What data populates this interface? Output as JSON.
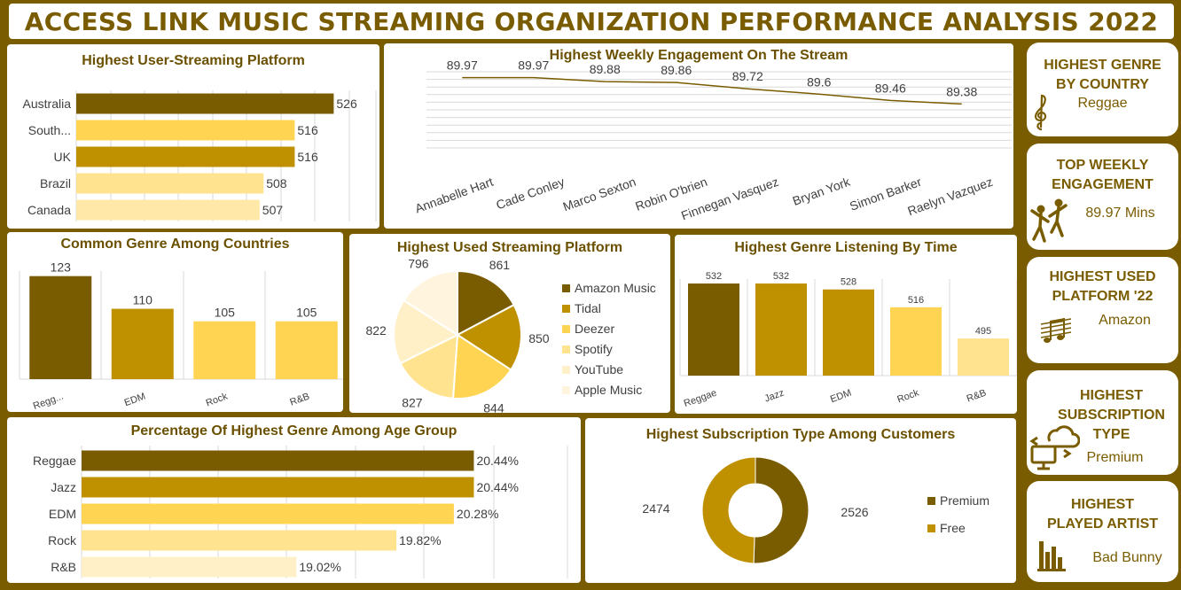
{
  "title": "ACCESS LINK MUSIC STREAMING ORGANIZATION PERFORMANCE ANALYSIS 2022",
  "colors": {
    "dark": "#7a5c00",
    "mid": "#bf9000",
    "yellow": "#ffd452",
    "light": "#ffe38f",
    "pale": "#fff0c8",
    "paler": "#fff5de"
  },
  "cards": [
    {
      "title_lines": [
        "HIGHEST GENRE",
        "BY COUNTRY"
      ],
      "value": "Reggae",
      "icon": "treble-clef-icon"
    },
    {
      "title_lines": [
        "TOP WEEKLY",
        "ENGAGEMENT"
      ],
      "value": "89.97 Mins",
      "icon": "dancers-icon"
    },
    {
      "title_lines": [
        "HIGHEST USED",
        "PLATFORM '22"
      ],
      "value": "Amazon",
      "icon": "music-notes-icon"
    },
    {
      "title_lines": [
        "HIGHEST",
        "SUBSCRIPTION",
        "TYPE"
      ],
      "value": "Premium",
      "icon": "cloud-computer-icon"
    },
    {
      "title_lines": [
        "HIGHEST",
        "PLAYED ARTIST"
      ],
      "value": "Bad Bunny",
      "icon": "bar-chart-icon"
    }
  ],
  "chart_data": [
    {
      "id": "user_platform",
      "type": "bar",
      "orientation": "horizontal",
      "title": "Highest User-Streaming Platform",
      "categories": [
        "Australia",
        "South...",
        "UK",
        "Brazil",
        "Canada"
      ],
      "values": [
        526,
        516,
        516,
        508,
        507
      ],
      "labels": [
        "526",
        "516",
        "516",
        "508",
        "507"
      ],
      "xlim": [
        460,
        530
      ],
      "colors": [
        "#7a5c00",
        "#ffd452",
        "#bf9000",
        "#ffe38f",
        "#ffe8a8"
      ]
    },
    {
      "id": "weekly_engagement",
      "type": "line",
      "title": "Highest Weekly Engagement On The Stream",
      "categories": [
        "Annabelle Hart",
        "Cade Conley",
        "Marco Sexton",
        "Robin O'brien",
        "Finnegan Vasquez",
        "Bryan York",
        "Simon Barker",
        "Raelyn Vazquez"
      ],
      "values": [
        89.97,
        89.97,
        89.88,
        89.86,
        89.72,
        89.6,
        89.46,
        89.38
      ],
      "labels": [
        "89.97",
        "89.97",
        "89.88",
        "89.86",
        "89.72",
        "89.6",
        "89.46",
        "89.38"
      ],
      "ylim": [
        88.4,
        90.1
      ]
    },
    {
      "id": "common_genre",
      "type": "bar",
      "title": "Common Genre Among Countries",
      "categories": [
        "Regg...",
        "EDM",
        "Rock",
        "R&B"
      ],
      "values": [
        123,
        110,
        105,
        105
      ],
      "labels": [
        "123",
        "110",
        "105",
        "105"
      ],
      "ylim": [
        82,
        125
      ],
      "colors": [
        "#7a5c00",
        "#bf9000",
        "#ffd452",
        "#ffd452"
      ]
    },
    {
      "id": "streaming_platform",
      "type": "pie",
      "title": "Highest Used Streaming Platform",
      "categories": [
        "Amazon Music",
        "Tidal",
        "Deezer",
        "Spotify",
        "YouTube",
        "Apple Music"
      ],
      "values": [
        861,
        850,
        844,
        827,
        822,
        796
      ],
      "labels": [
        "861",
        "850",
        "844",
        "827",
        "822",
        "796"
      ],
      "colors": [
        "#7a5c00",
        "#bf9000",
        "#ffd452",
        "#ffe38f",
        "#fff0c8",
        "#fff5de"
      ],
      "legend": "right"
    },
    {
      "id": "genre_time",
      "type": "bar",
      "title": "Highest  Genre Listening By Time",
      "categories": [
        "Reggae",
        "Jazz",
        "EDM",
        "Rock",
        "R&B"
      ],
      "values": [
        532,
        532,
        528,
        516,
        495
      ],
      "labels": [
        "532",
        "532",
        "528",
        "516",
        "495"
      ],
      "ylim": [
        470,
        535
      ],
      "colors": [
        "#7a5c00",
        "#bf9000",
        "#bf9000",
        "#ffd452",
        "#ffe38f"
      ]
    },
    {
      "id": "age_group",
      "type": "bar",
      "orientation": "horizontal",
      "title": "Percentage Of Highest Genre Among Age Group",
      "categories": [
        "Reggae",
        "Jazz",
        "EDM",
        "Rock",
        "R&B"
      ],
      "values": [
        20.44,
        20.44,
        20.28,
        19.82,
        19.02
      ],
      "labels": [
        "20.44%",
        "20.44%",
        "20.28%",
        "19.82%",
        "19.02%"
      ],
      "xlim": [
        17.3,
        20.6
      ],
      "colors": [
        "#7a5c00",
        "#bf9000",
        "#ffd452",
        "#ffe38f",
        "#fff0c8"
      ]
    },
    {
      "id": "subscription",
      "type": "pie",
      "title": "Highest Subscription Type Among  Customers",
      "categories": [
        "Premium",
        "Free"
      ],
      "values": [
        2526,
        2474
      ],
      "labels": [
        "2526",
        "2474"
      ],
      "colors": [
        "#7a5c00",
        "#bf9000"
      ],
      "legend": "right"
    }
  ]
}
